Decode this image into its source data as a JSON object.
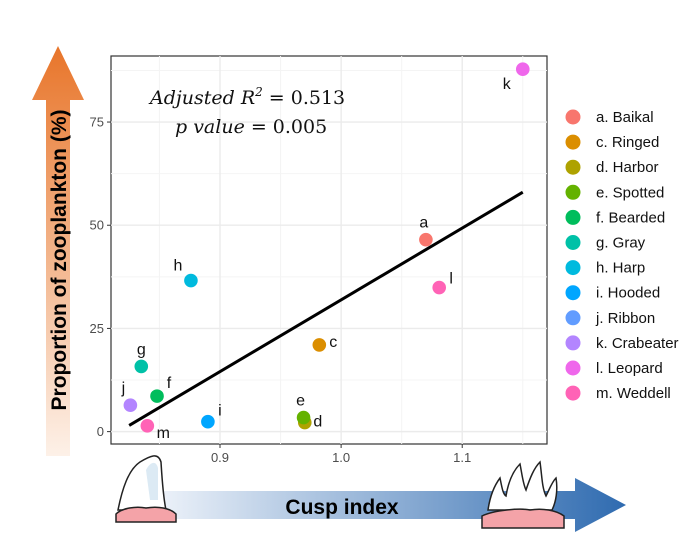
{
  "chart_data": {
    "type": "scatter",
    "title": "",
    "xlabel": "Cusp index",
    "ylabel": "Proportion of zooplankton (%)",
    "xlim": [
      0.81,
      1.17
    ],
    "ylim": [
      -3,
      91
    ],
    "x_ticks": [
      0.9,
      1.0,
      1.1
    ],
    "x_tick_labels": [
      "0.9",
      "1.0",
      "1.1"
    ],
    "y_ticks": [
      0,
      25,
      50,
      75
    ],
    "y_tick_labels": [
      "0",
      "25",
      "50",
      "75"
    ],
    "grid": true,
    "stats": {
      "r2_label": "Adjusted R",
      "r2_sup": "2",
      "r2_value": "= 0.513",
      "p_label": "p value",
      "p_value": "= 0.005"
    },
    "fit_line": {
      "x": [
        0.825,
        1.15
      ],
      "y": [
        1.5,
        58
      ]
    },
    "legend_position": "right",
    "points": [
      {
        "key": "a",
        "name": "a. Baikal",
        "x": 1.07,
        "y": 46.5,
        "color": "#F8766D"
      },
      {
        "key": "c",
        "name": "c. Ringed",
        "x": 0.982,
        "y": 21,
        "color": "#DB8E00"
      },
      {
        "key": "d",
        "name": "d. Harbor",
        "x": 0.97,
        "y": 2.2,
        "color": "#AEA200"
      },
      {
        "key": "e",
        "name": "e. Spotted",
        "x": 0.969,
        "y": 3.4,
        "color": "#64B200"
      },
      {
        "key": "f",
        "name": "f. Bearded",
        "x": 0.848,
        "y": 8.6,
        "color": "#00BD5C"
      },
      {
        "key": "g",
        "name": "g. Gray",
        "x": 0.835,
        "y": 15.8,
        "color": "#00C1A7"
      },
      {
        "key": "h",
        "name": "h. Harp",
        "x": 0.876,
        "y": 36.6,
        "color": "#00BADE"
      },
      {
        "key": "i",
        "name": "i. Hooded",
        "x": 0.89,
        "y": 2.4,
        "color": "#00A6FF"
      },
      {
        "key": "j",
        "name": "j. Ribbon",
        "x": 0.826,
        "y": 6.4,
        "color": "#B385FF"
      },
      {
        "key": "k",
        "name": "k. Crabeater",
        "x": 1.15,
        "y": 87.8,
        "color": "#EF67EB"
      },
      {
        "key": "l",
        "name": "l. Leopard",
        "x": 1.081,
        "y": 34.9,
        "color": "#FF63B6"
      },
      {
        "key": "m",
        "name": "m. Weddell",
        "x": 0.84,
        "y": 1.4,
        "color": "#FF63B6"
      }
    ],
    "legend_colors": [
      "#F8766D",
      "#DB8E00",
      "#AEA200",
      "#64B200",
      "#00BD5C",
      "#00C1A7",
      "#00BADE",
      "#00A6FF",
      "#619CFF",
      "#B385FF",
      "#EF67EB",
      "#FF63B6"
    ]
  },
  "colors": {
    "y_arrow_top": "#E8752A",
    "x_arrow_end": "#2F6BB0",
    "axis": "#333333",
    "grid": "#EBEBEB"
  }
}
